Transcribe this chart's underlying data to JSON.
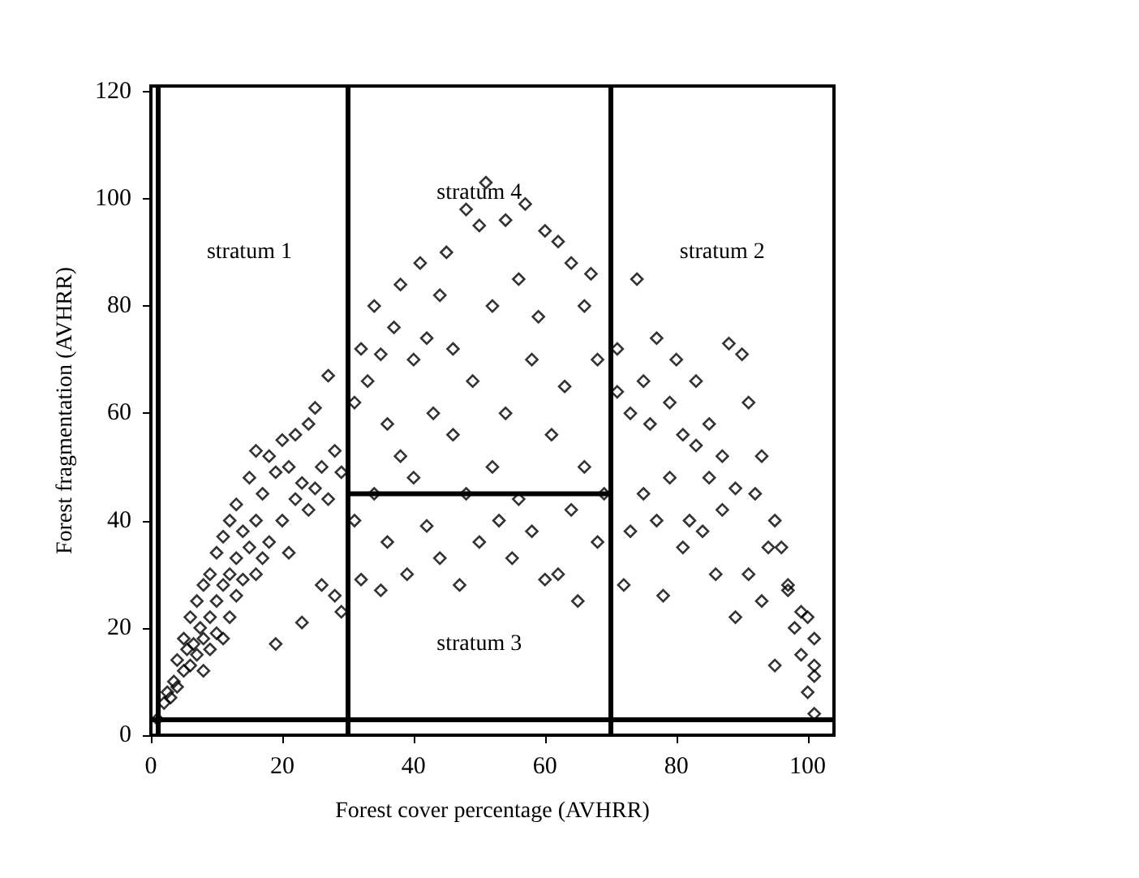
{
  "chart_data": {
    "type": "scatter",
    "xlabel": "Forest cover percentage (AVHRR)",
    "ylabel": "Forest fragmentation (AVHRR)",
    "xlim": [
      0,
      104
    ],
    "ylim": [
      0,
      121
    ],
    "xticks": [
      0,
      20,
      40,
      60,
      80,
      100
    ],
    "yticks": [
      0,
      20,
      40,
      60,
      80,
      100,
      120
    ],
    "grid": false,
    "marker": "diamond",
    "series": [
      {
        "color": "#000000",
        "x": [
          1,
          2,
          2.5,
          3,
          3.5,
          4,
          4,
          5,
          5,
          5.5,
          6,
          6,
          6.5,
          7,
          7,
          7.5,
          8,
          8,
          8,
          9,
          9,
          9,
          10,
          10,
          10,
          11,
          11,
          11,
          12,
          12,
          12,
          13,
          13,
          13,
          14,
          14,
          15,
          15,
          16,
          16,
          16,
          17,
          17,
          18,
          18,
          19,
          19,
          20,
          20,
          21,
          21,
          22,
          22,
          23,
          23,
          24,
          24,
          25,
          25,
          26,
          26,
          27,
          27,
          28,
          28,
          29,
          29,
          31,
          31,
          32,
          32,
          33,
          34,
          34,
          35,
          35,
          36,
          36,
          37,
          38,
          38,
          39,
          40,
          40,
          41,
          42,
          42,
          43,
          44,
          44,
          45,
          46,
          46,
          47,
          48,
          48,
          49,
          50,
          50,
          51,
          52,
          52,
          53,
          54,
          54,
          55,
          56,
          56,
          57,
          58,
          58,
          59,
          60,
          60,
          61,
          62,
          62,
          63,
          64,
          64,
          65,
          66,
          66,
          67,
          68,
          68,
          69,
          71,
          71,
          72,
          73,
          73,
          74,
          75,
          75,
          76,
          77,
          77,
          78,
          79,
          79,
          80,
          81,
          81,
          82,
          83,
          83,
          84,
          85,
          85,
          86,
          87,
          87,
          88,
          89,
          89,
          90,
          91,
          91,
          92,
          93,
          93,
          94,
          95,
          95,
          96,
          97,
          97,
          98,
          99,
          99,
          100,
          101,
          101,
          101,
          100,
          101
        ],
        "values": [
          3,
          6,
          8,
          7,
          10,
          14,
          9,
          18,
          12,
          16,
          22,
          13,
          17,
          25,
          15,
          20,
          28,
          18,
          12,
          30,
          22,
          16,
          34,
          25,
          19,
          37,
          28,
          18,
          40,
          30,
          22,
          43,
          33,
          26,
          38,
          29,
          48,
          35,
          53,
          40,
          30,
          45,
          33,
          52,
          36,
          49,
          17,
          55,
          40,
          50,
          34,
          56,
          44,
          47,
          21,
          58,
          42,
          61,
          46,
          50,
          28,
          67,
          44,
          53,
          26,
          49,
          23,
          62,
          40,
          72,
          29,
          66,
          80,
          45,
          71,
          27,
          58,
          36,
          76,
          84,
          52,
          30,
          70,
          48,
          88,
          39,
          74,
          60,
          82,
          33,
          90,
          56,
          72,
          28,
          98,
          45,
          66,
          95,
          36,
          103,
          50,
          80,
          40,
          96,
          60,
          33,
          85,
          44,
          99,
          70,
          38,
          78,
          29,
          94,
          56,
          30,
          92,
          65,
          42,
          88,
          25,
          80,
          50,
          86,
          36,
          70,
          45,
          72,
          64,
          28,
          60,
          38,
          85,
          45,
          66,
          58,
          40,
          74,
          26,
          62,
          48,
          70,
          35,
          56,
          40,
          54,
          66,
          38,
          48,
          58,
          30,
          52,
          42,
          73,
          22,
          46,
          71,
          30,
          62,
          45,
          25,
          52,
          35,
          40,
          13,
          35,
          28,
          27,
          20,
          23,
          15,
          22,
          18,
          11,
          13,
          8,
          4
        ]
      },
      {
        "type": "line",
        "color": "#000000",
        "marker": "none",
        "x": [
          30,
          70
        ],
        "values": [
          45,
          45
        ]
      }
    ],
    "ref_lines": [
      {
        "axis": "x",
        "value": 30
      },
      {
        "axis": "x",
        "value": 70
      },
      {
        "axis": "y",
        "value": 3
      },
      {
        "axis": "x",
        "value": 1
      }
    ],
    "annotations": [
      "stratum 1",
      "stratum 4",
      "stratum 2",
      "stratum 3"
    ]
  }
}
